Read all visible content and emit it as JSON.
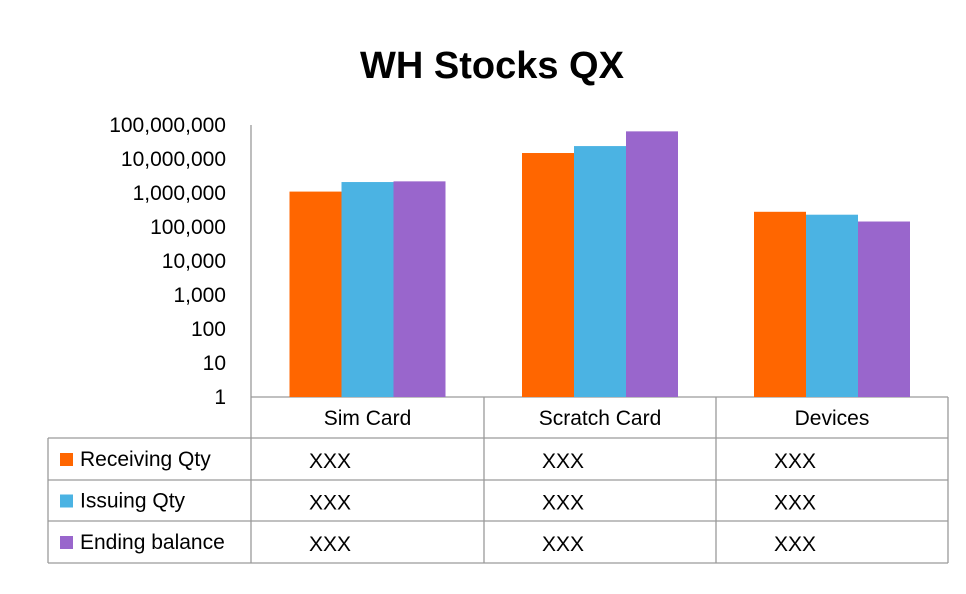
{
  "chart_data": {
    "type": "bar",
    "title": "WH Stocks QX",
    "y_scale": "log10",
    "ylim": [
      1,
      100000000
    ],
    "y_ticks": [
      "1",
      "10",
      "100",
      "1,000",
      "10,000",
      "100,000",
      "1,000,000",
      "10,000,000",
      "100,000,000"
    ],
    "categories": [
      "Sim Card",
      "Scratch Card",
      "Devices"
    ],
    "series": [
      {
        "name": "Receiving Qty",
        "color": "#FF6600",
        "values": [
          1100000,
          15000000,
          280000
        ]
      },
      {
        "name": "Issuing Qty",
        "color": "#4BB3E3",
        "values": [
          2100000,
          24000000,
          230000
        ]
      },
      {
        "name": "Ending balance",
        "color": "#9966CC",
        "values": [
          2200000,
          65000000,
          145000
        ]
      }
    ],
    "data_table": [
      [
        "XXX",
        "XXX",
        "XXX"
      ],
      [
        "XXX",
        "XXX",
        "XXX"
      ],
      [
        "XXX",
        "XXX",
        "XXX"
      ]
    ],
    "legend_placement": "data-table",
    "grid": false
  }
}
